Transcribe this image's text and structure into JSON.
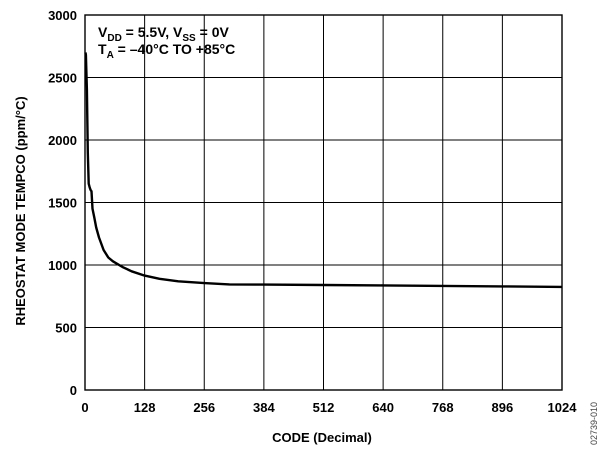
{
  "chart_data": {
    "type": "line",
    "xlabel": "CODE (Decimal)",
    "ylabel": "RHEOSTAT MODE TEMPCO (ppm/°C)",
    "xlim": [
      0,
      1024
    ],
    "ylim": [
      0,
      3000
    ],
    "x_ticks": [
      0,
      128,
      256,
      384,
      512,
      640,
      768,
      896,
      1024
    ],
    "y_ticks": [
      0,
      500,
      1000,
      1500,
      2000,
      2500,
      3000
    ],
    "grid": true,
    "series": [
      {
        "color": "#000000",
        "x": [
          1,
          2,
          4,
          6,
          8,
          10,
          12,
          14,
          16,
          20,
          24,
          30,
          40,
          50,
          60,
          80,
          100,
          128,
          160,
          200,
          256,
          310,
          384,
          512,
          640,
          768,
          896,
          1024
        ],
        "y": [
          2700,
          2680,
          2400,
          1900,
          1650,
          1620,
          1600,
          1590,
          1450,
          1380,
          1300,
          1220,
          1120,
          1060,
          1030,
          985,
          950,
          915,
          890,
          870,
          855,
          845,
          843,
          840,
          837,
          833,
          829,
          825
        ]
      }
    ],
    "annotations": {
      "line1_pre": "V",
      "line1_sub1": "DD",
      "line1_mid": " = 5.5V, V",
      "line1_sub2": "SS",
      "line1_post": " = 0V",
      "line2_pre": "T",
      "line2_sub": "A",
      "line2_post": " = –40°C TO +85°C"
    },
    "figure_id": "02739-010"
  }
}
